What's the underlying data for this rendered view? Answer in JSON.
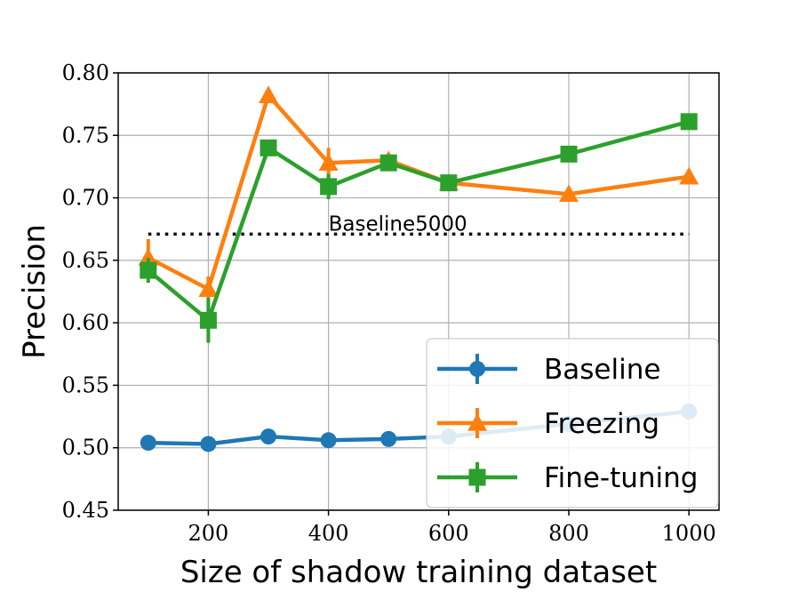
{
  "chart_data": {
    "type": "line",
    "xlabel": "Size of shadow training dataset",
    "ylabel": "Precision",
    "xlim": [
      50,
      1050
    ],
    "ylim": [
      0.45,
      0.8
    ],
    "xticks": [
      200,
      400,
      600,
      800,
      1000
    ],
    "xtick_labels": [
      "200",
      "400",
      "600",
      "800",
      "1000"
    ],
    "yticks": [
      0.45,
      0.5,
      0.55,
      0.6,
      0.65,
      0.7,
      0.75,
      0.8
    ],
    "ytick_labels": [
      "0.45",
      "0.50",
      "0.55",
      "0.60",
      "0.65",
      "0.70",
      "0.75",
      "0.80"
    ],
    "grid": true,
    "legend_position": "lower-right",
    "series": [
      {
        "name": "Baseline",
        "color": "#1f77b4",
        "marker": "circle",
        "x": [
          100,
          200,
          300,
          400,
          500,
          600,
          800,
          1000
        ],
        "values": [
          0.504,
          0.503,
          0.509,
          0.506,
          0.507,
          0.509,
          0.519,
          0.529
        ],
        "err": [
          0.004,
          0.004,
          0.004,
          0.004,
          0.004,
          0.004,
          0.004,
          0.004
        ]
      },
      {
        "name": "Freezing",
        "color": "#ff7f0e",
        "marker": "triangle",
        "x": [
          100,
          200,
          300,
          400,
          500,
          600,
          800,
          1000
        ],
        "values": [
          0.652,
          0.627,
          0.782,
          0.728,
          0.73,
          0.712,
          0.703,
          0.717
        ],
        "err": [
          0.015,
          0.01,
          0.005,
          0.012,
          0.005,
          0.004,
          0.004,
          0.004
        ]
      },
      {
        "name": "Fine-tuning",
        "color": "#2ca02c",
        "marker": "square",
        "x": [
          100,
          200,
          300,
          400,
          500,
          600,
          800,
          1000
        ],
        "values": [
          0.642,
          0.602,
          0.74,
          0.709,
          0.728,
          0.712,
          0.735,
          0.761
        ],
        "err": [
          0.01,
          0.018,
          0.006,
          0.01,
          0.005,
          0.004,
          0.004,
          0.004
        ]
      }
    ],
    "reference_line": {
      "label": "Baseline5000",
      "value": 0.671,
      "x_range": [
        100,
        1000
      ],
      "style": "dotted"
    }
  }
}
